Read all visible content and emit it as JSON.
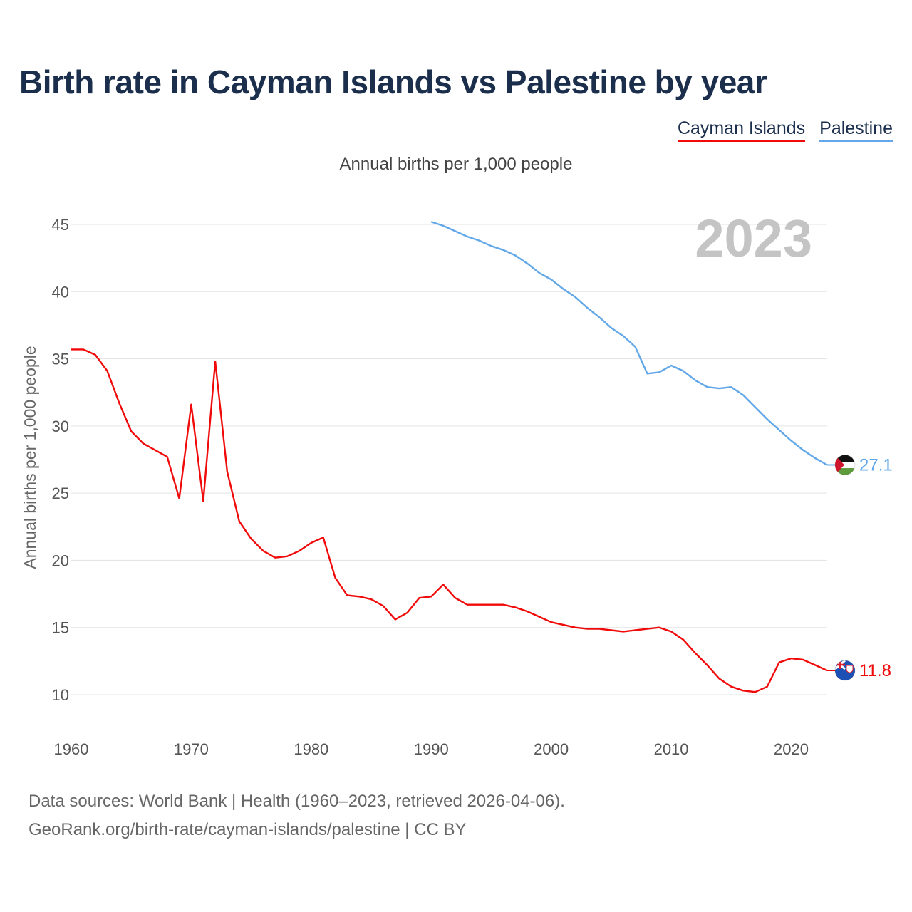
{
  "title": "Birth rate in Cayman Islands vs Palestine by year",
  "subtitle": "Annual births per 1,000 people",
  "legend": [
    {
      "name": "Cayman Islands",
      "color": "#f00a0a"
    },
    {
      "name": "Palestine",
      "color": "#62a8e8"
    }
  ],
  "year_watermark": "2023",
  "footer": {
    "line1": "Data sources: World Bank | Health (1960–2023, retrieved 2026-04-06).",
    "line2": "GeoRank.org/birth-rate/cayman-islands/palestine | CC BY"
  },
  "chart_data": {
    "type": "line",
    "title": "Birth rate in Cayman Islands vs Palestine by year",
    "xlabel": "",
    "ylabel": "Annual births per 1,000 people",
    "xlim": [
      1960,
      2023
    ],
    "ylim": [
      7.5,
      47
    ],
    "x_ticks": [
      1960,
      1970,
      1980,
      1990,
      2000,
      2010,
      2020
    ],
    "y_ticks": [
      10,
      15,
      20,
      25,
      30,
      35,
      40,
      45
    ],
    "grid": true,
    "series": [
      {
        "name": "Cayman Islands",
        "color": "#f00a0a",
        "end_label": "11.8",
        "flag": "cayman",
        "x": [
          1960,
          1961,
          1962,
          1963,
          1964,
          1965,
          1966,
          1967,
          1968,
          1969,
          1970,
          1971,
          1972,
          1973,
          1974,
          1975,
          1976,
          1977,
          1978,
          1979,
          1980,
          1981,
          1982,
          1983,
          1984,
          1985,
          1986,
          1987,
          1988,
          1989,
          1990,
          1991,
          1992,
          1993,
          1994,
          1995,
          1996,
          1997,
          1998,
          1999,
          2000,
          2001,
          2002,
          2003,
          2004,
          2005,
          2006,
          2007,
          2008,
          2009,
          2010,
          2011,
          2012,
          2013,
          2014,
          2015,
          2016,
          2017,
          2018,
          2019,
          2020,
          2021,
          2022,
          2023
        ],
        "y": [
          35.7,
          35.7,
          35.3,
          34.1,
          31.7,
          29.6,
          28.7,
          28.2,
          27.7,
          24.6,
          31.6,
          24.4,
          34.8,
          26.6,
          22.9,
          21.6,
          20.7,
          20.2,
          20.3,
          20.7,
          21.3,
          21.7,
          18.7,
          17.4,
          17.3,
          17.1,
          16.6,
          15.6,
          16.1,
          17.2,
          17.3,
          18.2,
          17.2,
          16.7,
          16.7,
          16.7,
          16.7,
          16.5,
          16.2,
          15.8,
          15.4,
          15.2,
          15.0,
          14.9,
          14.9,
          14.8,
          14.7,
          14.8,
          14.9,
          15.0,
          14.7,
          14.1,
          13.1,
          12.2,
          11.2,
          10.6,
          10.3,
          10.2,
          10.6,
          12.4,
          12.7,
          12.6,
          12.2,
          11.8
        ]
      },
      {
        "name": "Palestine",
        "color": "#62a8e8",
        "end_label": "27.1",
        "flag": "palestine",
        "x": [
          1990,
          1991,
          1992,
          1993,
          1994,
          1995,
          1996,
          1997,
          1998,
          1999,
          2000,
          2001,
          2002,
          2003,
          2004,
          2005,
          2006,
          2007,
          2008,
          2009,
          2010,
          2011,
          2012,
          2013,
          2014,
          2015,
          2016,
          2017,
          2018,
          2019,
          2020,
          2021,
          2022,
          2023
        ],
        "y": [
          45.2,
          44.9,
          44.5,
          44.1,
          43.8,
          43.4,
          43.1,
          42.7,
          42.1,
          41.4,
          40.9,
          40.2,
          39.6,
          38.8,
          38.1,
          37.3,
          36.7,
          35.9,
          33.9,
          34.0,
          34.5,
          34.1,
          33.4,
          32.9,
          32.8,
          32.9,
          32.3,
          31.4,
          30.5,
          29.7,
          28.9,
          28.2,
          27.6,
          27.1
        ]
      }
    ]
  }
}
